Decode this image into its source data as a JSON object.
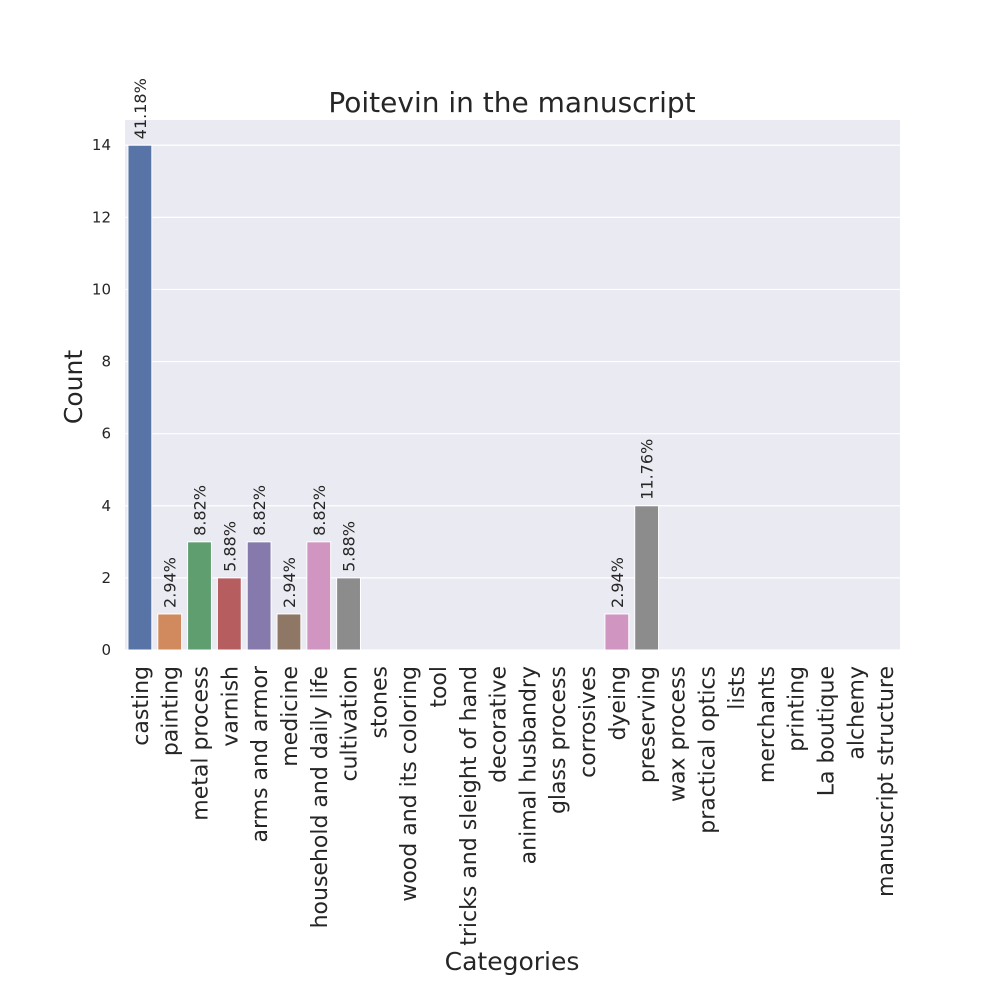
{
  "chart_data": {
    "type": "bar",
    "title": "Poitevin in the manuscript",
    "xlabel": "Categories",
    "ylabel": "Count",
    "ylim": [
      0,
      14.7
    ],
    "yticks": [
      0,
      2,
      4,
      6,
      8,
      10,
      12,
      14
    ],
    "grid": true,
    "categories": [
      "casting",
      "painting",
      "metal process",
      "varnish",
      "arms and armor",
      "medicine",
      "household and daily life",
      "cultivation",
      "stones",
      "wood and its coloring",
      "tool",
      "tricks and sleight of hand",
      "decorative",
      "animal husbandry",
      "glass process",
      "corrosives",
      "dyeing",
      "preserving",
      "wax process",
      "practical optics",
      "lists",
      "merchants",
      "printing",
      "La boutique",
      "alchemy",
      "manuscript structure"
    ],
    "values": [
      14,
      1,
      3,
      2,
      3,
      1,
      3,
      2,
      0,
      0,
      0,
      0,
      0,
      0,
      0,
      0,
      1,
      4,
      0,
      0,
      0,
      0,
      0,
      0,
      0,
      0
    ],
    "labels": [
      "41.18%",
      "2.94%",
      "8.82%",
      "5.88%",
      "8.82%",
      "2.94%",
      "8.82%",
      "5.88%",
      "",
      "",
      "",
      "",
      "",
      "",
      "",
      "",
      "2.94%",
      "11.76%",
      "",
      "",
      "",
      "",
      "",
      "",
      "",
      ""
    ],
    "colors": [
      "#5874a6",
      "#d08a5e",
      "#5f9e6e",
      "#b65d60",
      "#857aab",
      "#8e7765",
      "#d195c1",
      "#8c8c8c",
      "#c3b27a",
      "#6ea8c4",
      "#5874a6",
      "#d08a5e",
      "#5f9e6e",
      "#b65d60",
      "#857aab",
      "#8e7765",
      "#d195c1",
      "#8c8c8c",
      "#c3b27a",
      "#6ea8c4",
      "#5874a6",
      "#d08a5e",
      "#5f9e6e",
      "#b65d60",
      "#857aab",
      "#8e7765"
    ]
  }
}
